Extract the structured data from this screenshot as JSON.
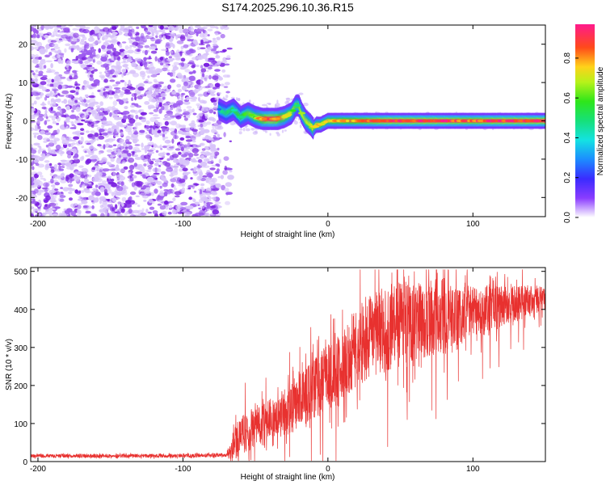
{
  "title": "S174.2025.296.10.36.R15",
  "colors": {
    "snr_line": "#e8312f",
    "scatter": "#8b2be2"
  },
  "chart_data": [
    {
      "type": "heatmap",
      "xlabel": "Height of straight line (km)",
      "ylabel": "Frequency (Hz)",
      "xlim": [
        -205,
        150
      ],
      "ylim": [
        -25,
        25
      ],
      "xticks": [
        -200,
        -100,
        0,
        100
      ],
      "yticks": [
        -20,
        -10,
        0,
        10,
        20
      ],
      "colorbar": {
        "label": "Normalized spectral amplitude",
        "range": [
          0,
          0.97
        ],
        "ticks": [
          0.0,
          0.2,
          0.4,
          0.6,
          0.8
        ],
        "colormap": "rainbow"
      },
      "noise_region_x": [
        -205,
        -75
      ],
      "ridge": {
        "x": [
          -75,
          -70,
          -65,
          -60,
          -55,
          -50,
          -45,
          -40,
          -35,
          -30,
          -25,
          -22,
          -20,
          -18,
          -15,
          -12,
          -10,
          -8,
          -5,
          0,
          10,
          20,
          40,
          60,
          80,
          100,
          120,
          150
        ],
        "freq": [
          3,
          2,
          3,
          1,
          2,
          1,
          0.5,
          0.5,
          0.5,
          1,
          2,
          4,
          4,
          2,
          0,
          -1,
          -2,
          -1,
          -1,
          0,
          0,
          0,
          0,
          0,
          0,
          0,
          0,
          0
        ],
        "amplitude": [
          0.3,
          0.35,
          0.4,
          0.45,
          0.5,
          0.6,
          0.8,
          0.9,
          0.85,
          0.7,
          0.6,
          0.5,
          0.5,
          0.6,
          0.6,
          0.6,
          0.7,
          0.65,
          0.7,
          0.7,
          0.75,
          0.8,
          0.9,
          0.9,
          0.9,
          0.85,
          0.9,
          0.9
        ]
      }
    },
    {
      "type": "line",
      "xlabel": "Height of straight line (km)",
      "ylabel": "SNR (10 * v/v)",
      "xlim": [
        -205,
        150
      ],
      "ylim": [
        0,
        510
      ],
      "xticks": [
        -200,
        -100,
        0,
        100
      ],
      "yticks": [
        0,
        100,
        200,
        300,
        400,
        500
      ],
      "series": [
        {
          "name": "SNR",
          "x": [
            -205,
            -150,
            -100,
            -70,
            -65,
            -60,
            -50,
            -40,
            -30,
            -20,
            -10,
            0,
            10,
            20,
            30,
            40,
            50,
            60,
            70,
            80,
            90,
            100,
            110,
            120,
            130,
            140,
            150
          ],
          "mean": [
            15,
            15,
            15,
            17,
            40,
            70,
            90,
            110,
            130,
            160,
            190,
            220,
            250,
            300,
            330,
            350,
            360,
            370,
            370,
            375,
            385,
            390,
            400,
            410,
            415,
            425,
            430
          ],
          "spread": [
            6,
            6,
            6,
            6,
            60,
            60,
            70,
            70,
            80,
            90,
            100,
            110,
            120,
            130,
            140,
            140,
            140,
            130,
            120,
            110,
            100,
            90,
            80,
            70,
            60,
            50,
            40
          ]
        }
      ]
    }
  ]
}
